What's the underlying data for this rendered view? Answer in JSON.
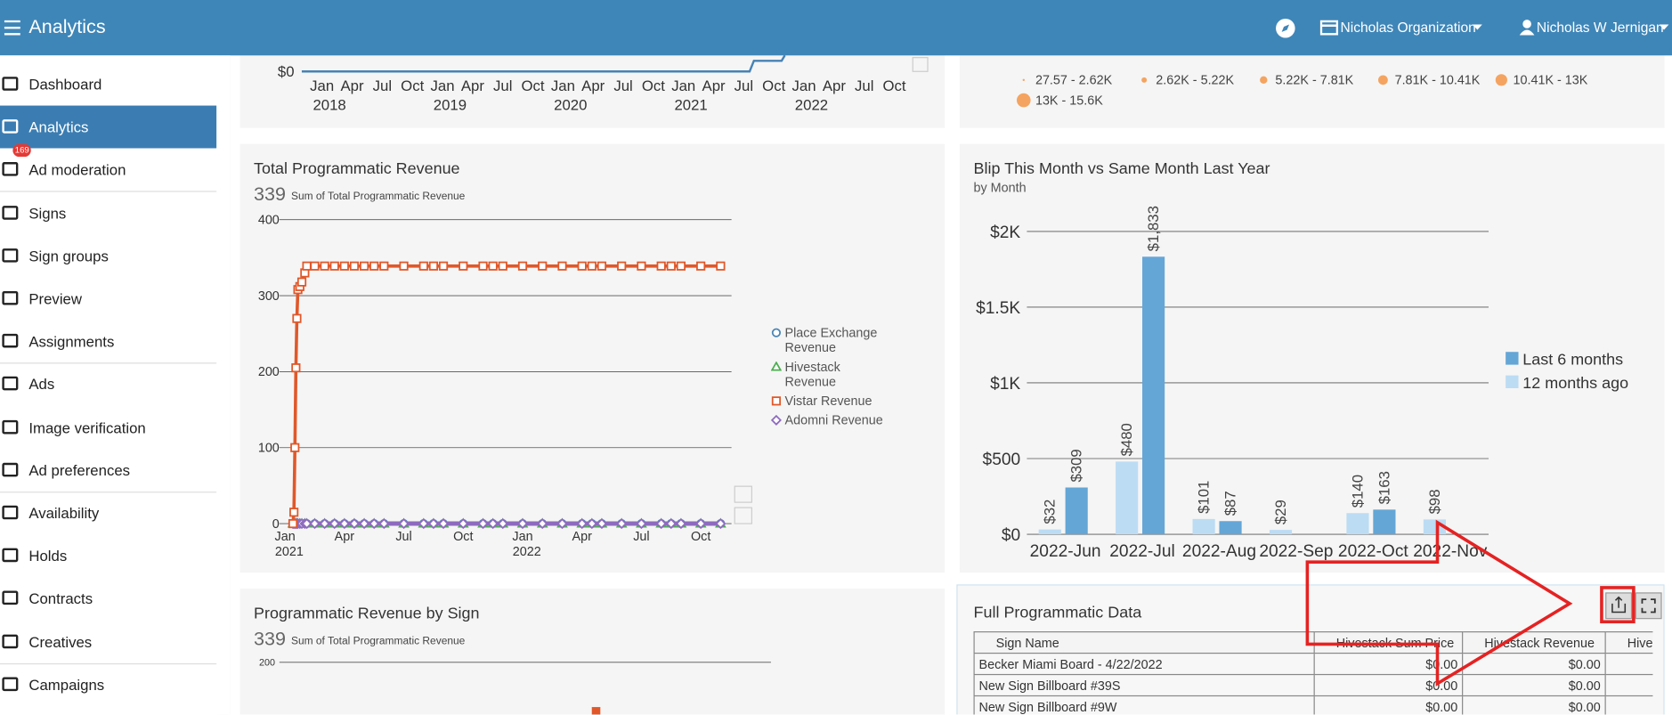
{
  "header": {
    "title": "Analytics",
    "organization": "Nicholas Organization",
    "user": "Nicholas W Jernigan"
  },
  "sidebar": {
    "items": [
      {
        "label": "Dashboard"
      },
      {
        "label": "Analytics",
        "active": true
      },
      {
        "label": "Ad moderation",
        "badge": 169
      },
      {
        "label": "Signs"
      },
      {
        "label": "Sign groups"
      },
      {
        "label": "Preview"
      },
      {
        "label": "Assignments"
      },
      {
        "label": "Ads"
      },
      {
        "label": "Image verification"
      },
      {
        "label": "Ad preferences"
      },
      {
        "label": "Availability"
      },
      {
        "label": "Holds"
      },
      {
        "label": "Contracts"
      },
      {
        "label": "Creatives"
      },
      {
        "label": "Campaigns"
      }
    ]
  },
  "revenue_over_time": {
    "yticks": [
      {
        "value": 0,
        "label": "$0"
      }
    ],
    "x_labels": [
      "Jan",
      "Apr",
      "Jul",
      "Oct",
      "Jan",
      "Apr",
      "Jul",
      "Oct",
      "Jan",
      "Apr",
      "Jul",
      "Oct",
      "Jan",
      "Apr",
      "Jul",
      "Oct",
      "Jan",
      "Apr",
      "Jul",
      "Oct"
    ],
    "years": [
      "2018",
      "2019",
      "2020",
      "2021",
      "2022"
    ]
  },
  "bubble_legend": {
    "items": [
      "27.57 - 2.62K",
      "2.62K - 5.22K",
      "5.22K - 7.81K",
      "7.81K - 10.41K",
      "10.41K - 13K",
      "13K - 15.6K"
    ]
  },
  "chart_data": [
    {
      "type": "line",
      "title": "Total Programmatic Revenue",
      "total": 339,
      "total_label": "Sum of Total Programmatic Revenue",
      "x": [
        0.4,
        0.45,
        0.5,
        0.55,
        0.6,
        0.65,
        0.75,
        0.85,
        1.0,
        1.1,
        1.5,
        2,
        2.5,
        3,
        3.5,
        4,
        4.5,
        5,
        6,
        7,
        7.5,
        8,
        9,
        10,
        10.5,
        11,
        12,
        13,
        14,
        15,
        15.5,
        16,
        17,
        18,
        19,
        19.5,
        20,
        21,
        22
      ],
      "xticks": [
        {
          "value": 0,
          "label": "Jan"
        },
        {
          "value": 3,
          "label": "Apr"
        },
        {
          "value": 6,
          "label": "Jul"
        },
        {
          "value": 9,
          "label": "Oct"
        },
        {
          "value": 12,
          "label": "Jan"
        },
        {
          "value": 15,
          "label": "Apr"
        },
        {
          "value": 18,
          "label": "Jul"
        },
        {
          "value": 21,
          "label": "Oct"
        }
      ],
      "x_years": [
        {
          "value": 0,
          "label": "2021"
        },
        {
          "value": 12,
          "label": "2022"
        }
      ],
      "xlim": [
        -0.5,
        22.55
      ],
      "ylim": [
        0,
        400
      ],
      "yticks": [
        0,
        100,
        200,
        300,
        400
      ],
      "grid": true,
      "series": [
        {
          "name": "Place Exchange Revenue",
          "color": "#4a86b5",
          "marker": "circle",
          "values": [
            0,
            0,
            0,
            0,
            0,
            0,
            0,
            0,
            0,
            0,
            0,
            0,
            0,
            0,
            0,
            0,
            0,
            0,
            0,
            0,
            0,
            0,
            0,
            0,
            0,
            0,
            0,
            0,
            0,
            0,
            0,
            0,
            0,
            0,
            0,
            0,
            0,
            0,
            0
          ]
        },
        {
          "name": "Hivestack Revenue",
          "color": "#4caf50",
          "marker": "triangle",
          "values": [
            0,
            0,
            0,
            0,
            0,
            0,
            0,
            0,
            0,
            0,
            0,
            0,
            0,
            0,
            0,
            0,
            0,
            0,
            0,
            0,
            0,
            0,
            0,
            0,
            0,
            0,
            0,
            0,
            0,
            0,
            0,
            0,
            0,
            0,
            0,
            0,
            0,
            0,
            0
          ]
        },
        {
          "name": "Vistar Revenue",
          "color": "#e0582a",
          "marker": "square",
          "values": [
            0,
            15,
            100,
            205,
            270,
            308,
            312,
            318,
            330,
            339,
            339,
            339,
            339,
            339,
            339,
            339,
            339,
            339,
            339,
            339,
            339,
            339,
            339,
            339,
            339,
            339,
            339,
            339,
            339,
            339,
            339,
            339,
            339,
            339,
            339,
            339,
            339,
            339,
            339
          ]
        },
        {
          "name": "Adomni Revenue",
          "color": "#8e6bbf",
          "marker": "diamond",
          "values": [
            0,
            0,
            0,
            0,
            0,
            0,
            0,
            0,
            0,
            0,
            0,
            0,
            0,
            0,
            0,
            0,
            0,
            0,
            0,
            0,
            0,
            0,
            0,
            0,
            0,
            0,
            0,
            0,
            0,
            0,
            0,
            0,
            0,
            0,
            0,
            0,
            0,
            0,
            0
          ]
        }
      ]
    },
    {
      "type": "bar",
      "title": "Blip This Month vs Same Month Last Year",
      "subtitle": "by Month",
      "categories": [
        "2022-Jun",
        "2022-Jul",
        "2022-Aug",
        "2022-Sep",
        "2022-Oct",
        "2022-Nov"
      ],
      "ylim": [
        0,
        2000
      ],
      "yticks": [
        {
          "value": 0,
          "label": "$0"
        },
        {
          "value": 500,
          "label": "$500"
        },
        {
          "value": 1000,
          "label": "$1K"
        },
        {
          "value": 1500,
          "label": "$1.5K"
        },
        {
          "value": 2000,
          "label": "$2K"
        }
      ],
      "grid": true,
      "legend": "right",
      "series": [
        {
          "name": "Last 6 months",
          "color": "#64a6d6",
          "values": [
            309,
            1833,
            87,
            null,
            163,
            null
          ],
          "value_labels": [
            "$309",
            "$1,833",
            "$87",
            null,
            "$163",
            null
          ]
        },
        {
          "name": "12 months ago",
          "color": "#bcdcf4",
          "values": [
            32,
            480,
            101,
            29,
            140,
            98
          ],
          "value_labels": [
            "$32",
            "$480",
            "$101",
            "$29",
            "$140",
            "$98"
          ]
        }
      ]
    }
  ],
  "revenue_by_sign": {
    "title": "Programmatic Revenue by Sign",
    "total": 339,
    "total_label": "Sum of Total Programmatic Revenue",
    "yticks": [
      200
    ]
  },
  "table": {
    "title": "Full Programmatic Data",
    "columns": [
      "Sign Name",
      "Hivestack Sum Price",
      "Hivestack Revenue",
      "Hives"
    ],
    "rows": [
      [
        "Becker Miami Board - 4/22/2022",
        "$0.00",
        "$0.00"
      ],
      [
        "New Sign Billboard #39S",
        "$0.00",
        "$0.00"
      ],
      [
        "New Sign Billboard #9W",
        "$0.00",
        "$0.00"
      ]
    ]
  }
}
